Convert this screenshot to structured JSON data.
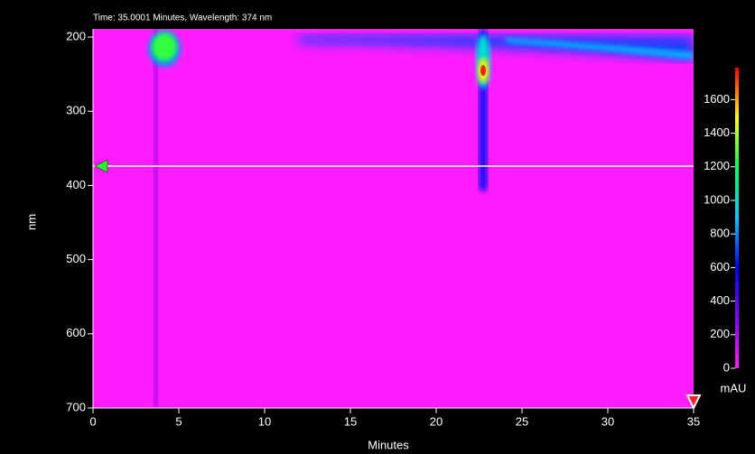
{
  "header": "Time: 35.0001 Minutes, Wavelength: 374 nm",
  "chart_data": {
    "type": "heatmap",
    "x_label": "Minutes",
    "y_label": "nm",
    "xlim": [
      0,
      35
    ],
    "xticks": [
      0,
      5,
      10,
      15,
      20,
      25,
      30,
      35
    ],
    "ylim": [
      189,
      700
    ],
    "yticks": [
      200,
      300,
      400,
      500,
      600,
      700
    ],
    "y_inverted": true,
    "background_color": "#ff1cff",
    "colorbar": {
      "label": "mAU",
      "lim": [
        0,
        1790
      ],
      "ticks": [
        0,
        200,
        400,
        600,
        800,
        1000,
        1200,
        1400,
        1600
      ],
      "colors": [
        "#ff1cff",
        "#8a00ff",
        "#0000ff",
        "#00c8ff",
        "#00ff60",
        "#ffff00",
        "#ff0000"
      ]
    },
    "cursor": {
      "time": 35.0001,
      "wavelength": 374
    }
  }
}
